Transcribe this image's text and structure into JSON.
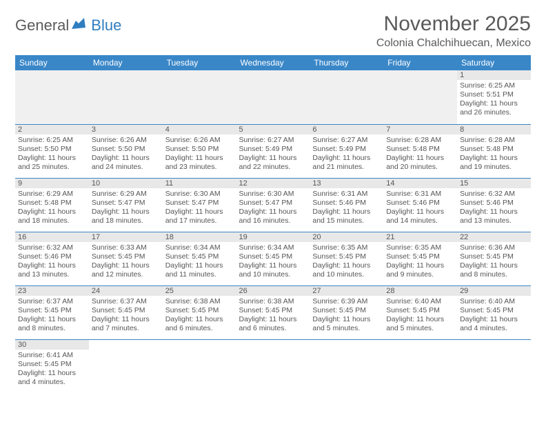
{
  "logo": {
    "text_dark": "General",
    "text_blue": "Blue"
  },
  "title": "November 2025",
  "location": "Colonia Chalchihuecan, Mexico",
  "colors": {
    "header_bg": "#3a87c8",
    "header_fg": "#ffffff",
    "daynum_bg": "#e8e8e8",
    "empty_bg": "#f0f0f0",
    "border": "#3a87c8",
    "text": "#555555",
    "logo_blue": "#2f7ec0"
  },
  "weekdays": [
    "Sunday",
    "Monday",
    "Tuesday",
    "Wednesday",
    "Thursday",
    "Friday",
    "Saturday"
  ],
  "layout": {
    "first_weekday_index": 6,
    "days_in_month": 30
  },
  "days": [
    {
      "n": 1,
      "sunrise": "6:25 AM",
      "sunset": "5:51 PM",
      "dl_h": 11,
      "dl_m": 26
    },
    {
      "n": 2,
      "sunrise": "6:25 AM",
      "sunset": "5:50 PM",
      "dl_h": 11,
      "dl_m": 25
    },
    {
      "n": 3,
      "sunrise": "6:26 AM",
      "sunset": "5:50 PM",
      "dl_h": 11,
      "dl_m": 24
    },
    {
      "n": 4,
      "sunrise": "6:26 AM",
      "sunset": "5:50 PM",
      "dl_h": 11,
      "dl_m": 23
    },
    {
      "n": 5,
      "sunrise": "6:27 AM",
      "sunset": "5:49 PM",
      "dl_h": 11,
      "dl_m": 22
    },
    {
      "n": 6,
      "sunrise": "6:27 AM",
      "sunset": "5:49 PM",
      "dl_h": 11,
      "dl_m": 21
    },
    {
      "n": 7,
      "sunrise": "6:28 AM",
      "sunset": "5:48 PM",
      "dl_h": 11,
      "dl_m": 20
    },
    {
      "n": 8,
      "sunrise": "6:28 AM",
      "sunset": "5:48 PM",
      "dl_h": 11,
      "dl_m": 19
    },
    {
      "n": 9,
      "sunrise": "6:29 AM",
      "sunset": "5:48 PM",
      "dl_h": 11,
      "dl_m": 18
    },
    {
      "n": 10,
      "sunrise": "6:29 AM",
      "sunset": "5:47 PM",
      "dl_h": 11,
      "dl_m": 18
    },
    {
      "n": 11,
      "sunrise": "6:30 AM",
      "sunset": "5:47 PM",
      "dl_h": 11,
      "dl_m": 17
    },
    {
      "n": 12,
      "sunrise": "6:30 AM",
      "sunset": "5:47 PM",
      "dl_h": 11,
      "dl_m": 16
    },
    {
      "n": 13,
      "sunrise": "6:31 AM",
      "sunset": "5:46 PM",
      "dl_h": 11,
      "dl_m": 15
    },
    {
      "n": 14,
      "sunrise": "6:31 AM",
      "sunset": "5:46 PM",
      "dl_h": 11,
      "dl_m": 14
    },
    {
      "n": 15,
      "sunrise": "6:32 AM",
      "sunset": "5:46 PM",
      "dl_h": 11,
      "dl_m": 13
    },
    {
      "n": 16,
      "sunrise": "6:32 AM",
      "sunset": "5:46 PM",
      "dl_h": 11,
      "dl_m": 13
    },
    {
      "n": 17,
      "sunrise": "6:33 AM",
      "sunset": "5:45 PM",
      "dl_h": 11,
      "dl_m": 12
    },
    {
      "n": 18,
      "sunrise": "6:34 AM",
      "sunset": "5:45 PM",
      "dl_h": 11,
      "dl_m": 11
    },
    {
      "n": 19,
      "sunrise": "6:34 AM",
      "sunset": "5:45 PM",
      "dl_h": 11,
      "dl_m": 10
    },
    {
      "n": 20,
      "sunrise": "6:35 AM",
      "sunset": "5:45 PM",
      "dl_h": 11,
      "dl_m": 10
    },
    {
      "n": 21,
      "sunrise": "6:35 AM",
      "sunset": "5:45 PM",
      "dl_h": 11,
      "dl_m": 9
    },
    {
      "n": 22,
      "sunrise": "6:36 AM",
      "sunset": "5:45 PM",
      "dl_h": 11,
      "dl_m": 8
    },
    {
      "n": 23,
      "sunrise": "6:37 AM",
      "sunset": "5:45 PM",
      "dl_h": 11,
      "dl_m": 8
    },
    {
      "n": 24,
      "sunrise": "6:37 AM",
      "sunset": "5:45 PM",
      "dl_h": 11,
      "dl_m": 7
    },
    {
      "n": 25,
      "sunrise": "6:38 AM",
      "sunset": "5:45 PM",
      "dl_h": 11,
      "dl_m": 6
    },
    {
      "n": 26,
      "sunrise": "6:38 AM",
      "sunset": "5:45 PM",
      "dl_h": 11,
      "dl_m": 6
    },
    {
      "n": 27,
      "sunrise": "6:39 AM",
      "sunset": "5:45 PM",
      "dl_h": 11,
      "dl_m": 5
    },
    {
      "n": 28,
      "sunrise": "6:40 AM",
      "sunset": "5:45 PM",
      "dl_h": 11,
      "dl_m": 5
    },
    {
      "n": 29,
      "sunrise": "6:40 AM",
      "sunset": "5:45 PM",
      "dl_h": 11,
      "dl_m": 4
    },
    {
      "n": 30,
      "sunrise": "6:41 AM",
      "sunset": "5:45 PM",
      "dl_h": 11,
      "dl_m": 4
    }
  ],
  "labels": {
    "sunrise": "Sunrise:",
    "sunset": "Sunset:",
    "daylight": "Daylight:"
  }
}
